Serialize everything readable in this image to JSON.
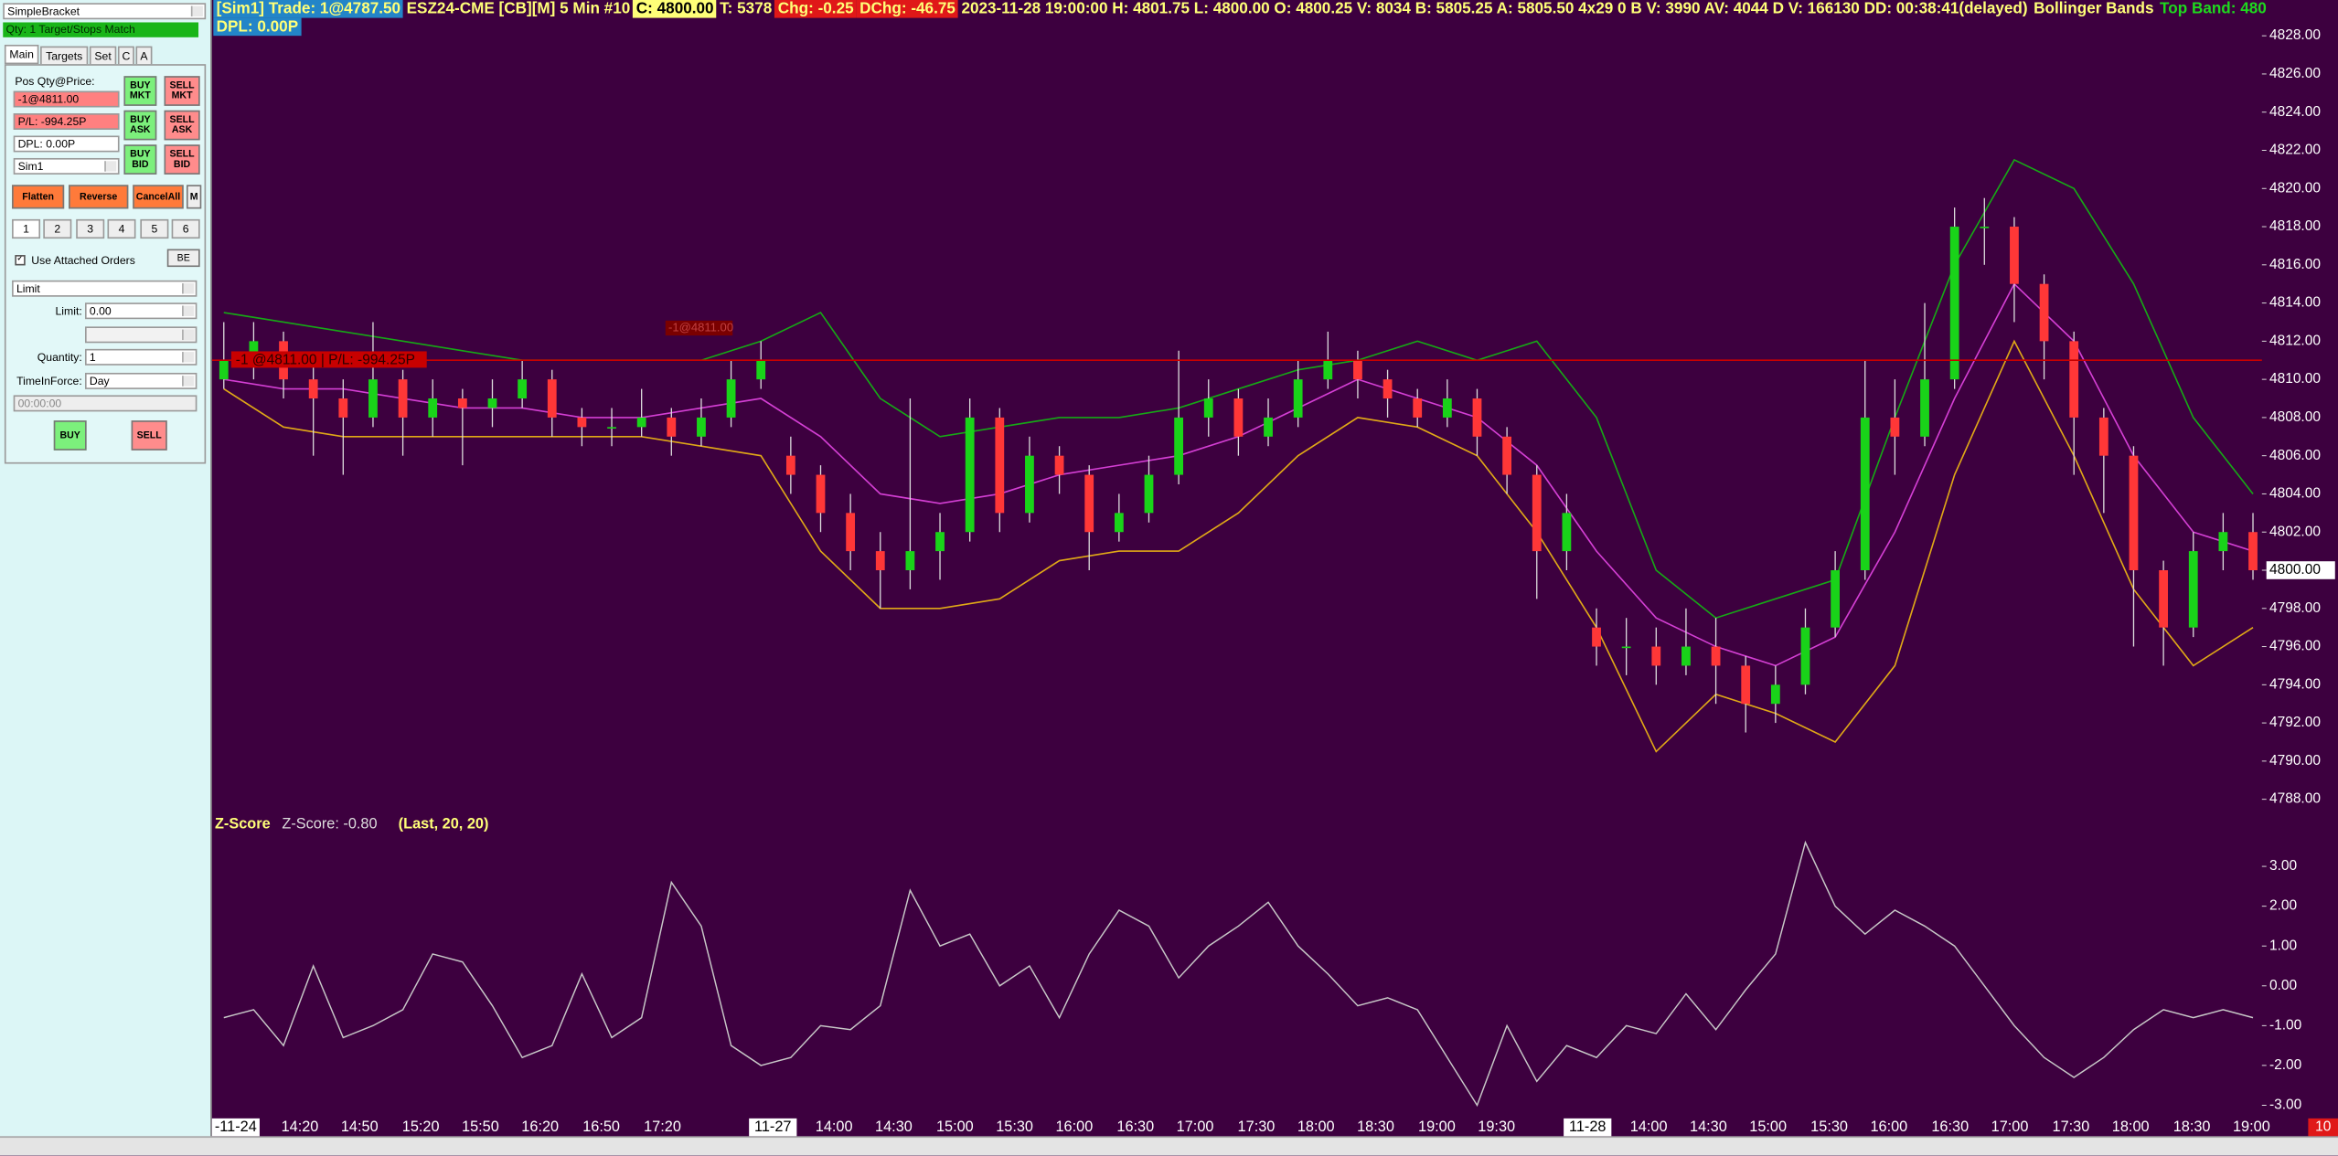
{
  "order_panel": {
    "strategy": "SimpleBracket",
    "status": "Qty: 1 Target/Stops Match",
    "tabs": [
      "Main",
      "Targets",
      "Set",
      "C",
      "A"
    ],
    "pos_label": "Pos Qty@Price:",
    "position": "-1@4811.00",
    "pl": "P/L: -994.25P",
    "dpl": "DPL: 0.00P",
    "account": "Sim1",
    "buttons": {
      "buy_mkt": "BUY MKT",
      "sell_mkt": "SELL MKT",
      "buy_ask": "BUY ASK",
      "sell_ask": "SELL ASK",
      "buy_bid": "BUY BID",
      "sell_bid": "SELL BID",
      "flatten": "Flatten",
      "reverse": "Reverse",
      "cancel_all": "CancelAll",
      "m": "M",
      "be": "BE",
      "buy": "BUY",
      "sell": "SELL"
    },
    "number_tabs": [
      "1",
      "2",
      "3",
      "4",
      "5",
      "6"
    ],
    "attached_orders": "Use Attached Orders",
    "order_type": "Limit",
    "limit_label": "Limit:",
    "limit_value": "0.00",
    "quantity_label": "Quantity:",
    "quantity_value": "1",
    "tif_label": "TimeInForce:",
    "tif_value": "Day",
    "time_value": "00:00:00"
  },
  "header": {
    "trade": "[Sim1] Trade: 1@4787.50",
    "symbol": "ESZ24-CME [CB][M] 5 Min #10",
    "close": "C: 4800.00",
    "trades": "T: 5378",
    "change": "Chg: -0.25",
    "daily_change": "DChg: -46.75",
    "bar_info": "2023-11-28 19:00:00 H: 4801.75 L: 4800.00 O: 4800.25 V: 8034 B: 5805.25 A: 5805.50 4x29 0 B V: 3990 AV: 4044 D V: 166130 DD: 00:38:41(delayed)",
    "study": "Bollinger Bands",
    "top_band": "Top Band: 480",
    "dpl": "DPL: 0.00P"
  },
  "chart_data": [
    {
      "type": "candlestick",
      "up_color": "#19d319",
      "down_color": "#ff3737",
      "candles": [
        [
          4810,
          4813,
          4809.5,
          4811
        ],
        [
          4811,
          4813,
          4810,
          4812
        ],
        [
          4812,
          4812.5,
          4809,
          4810
        ],
        [
          4810,
          4811,
          4806,
          4809
        ],
        [
          4809,
          4810,
          4805,
          4808
        ],
        [
          4808,
          4813,
          4807.5,
          4810
        ],
        [
          4810,
          4810.5,
          4806,
          4808
        ],
        [
          4808,
          4810,
          4807,
          4809
        ],
        [
          4809,
          4809.5,
          4805.5,
          4808.5
        ],
        [
          4808.5,
          4810,
          4807.5,
          4809
        ],
        [
          4809,
          4811,
          4808.5,
          4810
        ],
        [
          4810,
          4810.5,
          4807,
          4808
        ],
        [
          4808,
          4808.5,
          4806.5,
          4807.5
        ],
        [
          4807.5,
          4808.5,
          4806.5,
          4807.5
        ],
        [
          4807.5,
          4809.5,
          4807,
          4808
        ],
        [
          4808,
          4808.5,
          4806,
          4807
        ],
        [
          4807,
          4809,
          4806.5,
          4808
        ],
        [
          4808,
          4811,
          4807.5,
          4810
        ],
        [
          4810,
          4812,
          4809.5,
          4811
        ],
        [
          4806,
          4807,
          4804,
          4805
        ],
        [
          4805,
          4805.5,
          4802,
          4803
        ],
        [
          4803,
          4804,
          4800,
          4801
        ],
        [
          4801,
          4802,
          4798,
          4800
        ],
        [
          4800,
          4809,
          4799,
          4801
        ],
        [
          4801,
          4803,
          4799.5,
          4802
        ],
        [
          4802,
          4809,
          4801.5,
          4808
        ],
        [
          4808,
          4808.5,
          4802,
          4803
        ],
        [
          4803,
          4807,
          4802.5,
          4806
        ],
        [
          4806,
          4806.5,
          4804,
          4805
        ],
        [
          4805,
          4805.5,
          4800,
          4802
        ],
        [
          4802,
          4804,
          4801.5,
          4803
        ],
        [
          4803,
          4806,
          4802.5,
          4805
        ],
        [
          4805,
          4811.5,
          4804.5,
          4808
        ],
        [
          4808,
          4810,
          4807,
          4809
        ],
        [
          4809,
          4809.5,
          4806,
          4807
        ],
        [
          4807,
          4809,
          4806.5,
          4808
        ],
        [
          4808,
          4811,
          4807.5,
          4810
        ],
        [
          4810,
          4812.5,
          4809.5,
          4811
        ],
        [
          4811,
          4811.5,
          4809,
          4810
        ],
        [
          4810,
          4810.5,
          4808,
          4809
        ],
        [
          4809,
          4809.5,
          4807.5,
          4808
        ],
        [
          4808,
          4810,
          4807.5,
          4809
        ],
        [
          4809,
          4809.5,
          4806,
          4807
        ],
        [
          4807,
          4807.5,
          4804,
          4805
        ],
        [
          4805,
          4805.5,
          4798.5,
          4801
        ],
        [
          4801,
          4804,
          4800,
          4803
        ],
        [
          4797,
          4798,
          4795,
          4796
        ],
        [
          4796,
          4797.5,
          4794.5,
          4796
        ],
        [
          4796,
          4797,
          4794,
          4795
        ],
        [
          4795,
          4798,
          4794.5,
          4796
        ],
        [
          4796,
          4797.5,
          4793,
          4795
        ],
        [
          4795,
          4795.5,
          4791.5,
          4793
        ],
        [
          4793,
          4795,
          4792,
          4794
        ],
        [
          4794,
          4798,
          4793.5,
          4797
        ],
        [
          4797,
          4801,
          4796.5,
          4800
        ],
        [
          4800,
          4811,
          4799.5,
          4808
        ],
        [
          4808,
          4810,
          4805,
          4807
        ],
        [
          4807,
          4814,
          4806.5,
          4810
        ],
        [
          4810,
          4819,
          4809.5,
          4818
        ],
        [
          4818,
          4819.5,
          4816,
          4818
        ],
        [
          4818,
          4818.5,
          4813,
          4815
        ],
        [
          4815,
          4815.5,
          4810,
          4812
        ],
        [
          4812,
          4812.5,
          4805,
          4808
        ],
        [
          4808,
          4808.5,
          4803,
          4806
        ],
        [
          4806,
          4806.5,
          4796,
          4800
        ],
        [
          4800,
          4800.5,
          4795,
          4797
        ],
        [
          4797,
          4802,
          4796.5,
          4801
        ],
        [
          4801,
          4803,
          4800,
          4802
        ],
        [
          4802,
          4803,
          4799.5,
          4800
        ]
      ],
      "bands": [
        {
          "name": "upper",
          "color": "#16a816",
          "values": [
            4813.5,
            4813,
            4812.5,
            4812,
            4811.5,
            4811,
            4811,
            4811,
            4811,
            4812,
            4813.5,
            4809,
            4807,
            4807.5,
            4808,
            4808,
            4808.5,
            4809.5,
            4810.5,
            4811,
            4812,
            4811,
            4812,
            4808,
            4800,
            4797.5,
            4798.5,
            4799.5,
            4808,
            4816,
            4821.5,
            4820,
            4815,
            4808,
            4804
          ]
        },
        {
          "name": "middle",
          "color": "#d43fd4",
          "values": [
            4810,
            4809.5,
            4809.5,
            4809,
            4808.5,
            4808.5,
            4808,
            4808,
            4808.5,
            4809,
            4807,
            4804,
            4803.5,
            4804,
            4805,
            4805.5,
            4806,
            4807,
            4808.5,
            4810,
            4809,
            4808,
            4805.5,
            4801,
            4797.5,
            4796,
            4795,
            4796.5,
            4802,
            4809,
            4815,
            4812,
            4806,
            4802,
            4801
          ]
        },
        {
          "name": "lower",
          "color": "#e0a817",
          "values": [
            4809.5,
            4807.5,
            4807,
            4807,
            4807,
            4807,
            4807,
            4807,
            4806.5,
            4806,
            4801,
            4798,
            4798,
            4798.5,
            4800.5,
            4801,
            4801,
            4803,
            4806,
            4808,
            4807.5,
            4806,
            4802,
            4797,
            4790.5,
            4793.5,
            4792.5,
            4791,
            4795,
            4805,
            4812,
            4806,
            4799,
            4795,
            4797
          ]
        }
      ],
      "ylim": [
        4787,
        4829.75
      ],
      "yticks": [
        {
          "value": 4828,
          "label": "4828.00"
        },
        {
          "value": 4826,
          "label": "4826.00"
        },
        {
          "value": 4824,
          "label": "4824.00"
        },
        {
          "value": 4822,
          "label": "4822.00"
        },
        {
          "value": 4820,
          "label": "4820.00"
        },
        {
          "value": 4818,
          "label": "4818.00"
        },
        {
          "value": 4816,
          "label": "4816.00"
        },
        {
          "value": 4814,
          "label": "4814.00"
        },
        {
          "value": 4812,
          "label": "4812.00"
        },
        {
          "value": 4810,
          "label": "4810.00"
        },
        {
          "value": 4808,
          "label": "4808.00"
        },
        {
          "value": 4806,
          "label": "4806.00"
        },
        {
          "value": 4804,
          "label": "4804.00"
        },
        {
          "value": 4802,
          "label": "4802.00"
        },
        {
          "value": 4800,
          "label": "4800.00"
        },
        {
          "value": 4798,
          "label": "4798.00"
        },
        {
          "value": 4796,
          "label": "4796.00"
        },
        {
          "value": 4794,
          "label": "4794.00"
        },
        {
          "value": 4792,
          "label": "4792.00"
        },
        {
          "value": 4790,
          "label": "4790.00"
        },
        {
          "value": 4788,
          "label": "4788.00"
        }
      ],
      "order_line": {
        "value": 4811,
        "label": "-1 @4811.00 | P/L: -994.25P",
        "tag": "-1@4811.00",
        "color": "#c80000"
      },
      "last_price": {
        "value": 4800,
        "label": "4800.00"
      }
    },
    {
      "type": "line",
      "title": "Z-Score",
      "legend": "Z-Score: -0.80",
      "params": "(Last, 20, 20)",
      "color": "#c8c8c8",
      "values": [
        -0.8,
        -0.6,
        -1.5,
        0.5,
        -1.3,
        -1.0,
        -0.6,
        0.8,
        0.6,
        -0.5,
        -1.8,
        -1.5,
        0.3,
        -1.3,
        -0.8,
        2.6,
        1.5,
        -1.5,
        -2.0,
        -1.8,
        -1.0,
        -1.1,
        -0.5,
        2.4,
        1.0,
        1.3,
        0.0,
        0.5,
        -0.8,
        0.8,
        1.9,
        1.5,
        0.2,
        1.0,
        1.5,
        2.1,
        1.0,
        0.3,
        -0.5,
        -0.3,
        -0.6,
        -1.8,
        -3.0,
        -1.0,
        -2.4,
        -1.5,
        -1.8,
        -1.0,
        -1.2,
        -0.2,
        -1.1,
        -0.1,
        0.8,
        3.6,
        2.0,
        1.3,
        1.9,
        1.5,
        1.0,
        0.0,
        -1.0,
        -1.8,
        -2.3,
        -1.8,
        -1.1,
        -0.6,
        -0.8,
        -0.6,
        -0.8
      ],
      "ylim": [
        -3.5,
        4
      ],
      "yticks": [
        {
          "value": 3,
          "label": "3.00"
        },
        {
          "value": 2,
          "label": "2.00"
        },
        {
          "value": 1,
          "label": "1.00"
        },
        {
          "value": 0,
          "label": "0.00"
        },
        {
          "value": -1,
          "label": "-1.00"
        },
        {
          "value": -2,
          "label": "-2.00"
        },
        {
          "value": -3,
          "label": "-3.00"
        }
      ]
    }
  ],
  "time_axis": {
    "labels": [
      "-11-24",
      "14:20",
      "14:50",
      "15:20",
      "15:50",
      "16:20",
      "16:50",
      "17:20",
      "11-27",
      "14:00",
      "14:30",
      "15:00",
      "15:30",
      "16:00",
      "16:30",
      "17:00",
      "17:30",
      "18:00",
      "18:30",
      "19:00",
      "19:30",
      "11-28",
      "14:00",
      "14:30",
      "15:00",
      "15:30",
      "16:00",
      "16:30",
      "17:00",
      "17:30",
      "18:00",
      "18:30",
      "19:00"
    ]
  },
  "footer": {
    "badge": "10"
  }
}
